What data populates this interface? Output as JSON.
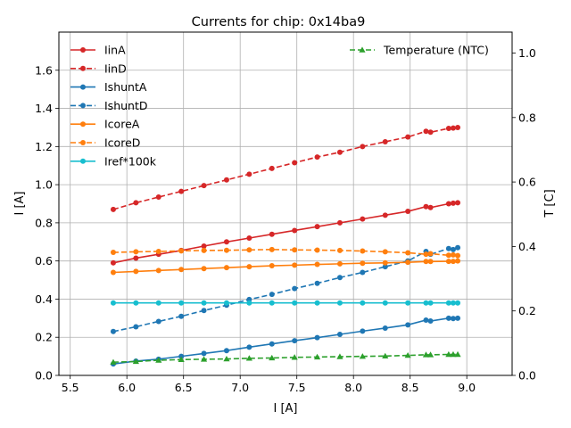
{
  "chart_data": {
    "type": "line",
    "title": "Currents for chip: 0x14ba9",
    "xlabel": "I [A]",
    "ylabel": "I [A]",
    "y2label": "T [C]",
    "xlim": [
      5.4,
      9.4
    ],
    "ylim": [
      0,
      1.8
    ],
    "y2lim": [
      0,
      1.065
    ],
    "xticks": [
      "5.5",
      "6.0",
      "6.5",
      "7.0",
      "7.5",
      "8.0",
      "8.5",
      "9.0"
    ],
    "yticks": [
      "0.0",
      "0.2",
      "0.4",
      "0.6",
      "0.8",
      "1.0",
      "1.2",
      "1.4",
      "1.6"
    ],
    "y2ticks": [
      "0.0",
      "0.2",
      "0.4",
      "0.6",
      "0.8",
      "1.0"
    ],
    "grid": true,
    "legend_left": "upper-left",
    "legend_right": "upper-right",
    "x": [
      5.88,
      6.08,
      6.28,
      6.48,
      6.68,
      6.88,
      7.08,
      7.28,
      7.48,
      7.68,
      7.88,
      8.08,
      8.28,
      8.48,
      8.64,
      8.68,
      8.84,
      8.88,
      8.92
    ],
    "series": [
      {
        "name": "IinA",
        "axis": "left",
        "color": "#d62728",
        "dash": false,
        "marker": "circle",
        "values": [
          0.59,
          0.615,
          0.635,
          0.655,
          0.678,
          0.7,
          0.72,
          0.74,
          0.76,
          0.78,
          0.8,
          0.82,
          0.84,
          0.86,
          0.885,
          0.88,
          0.9,
          0.903,
          0.905
        ]
      },
      {
        "name": "IinD",
        "axis": "left",
        "color": "#d62728",
        "dash": true,
        "marker": "circle",
        "values": [
          0.87,
          0.905,
          0.935,
          0.965,
          0.995,
          1.025,
          1.055,
          1.085,
          1.115,
          1.145,
          1.17,
          1.2,
          1.225,
          1.25,
          1.28,
          1.275,
          1.295,
          1.297,
          1.3
        ]
      },
      {
        "name": "IshuntA",
        "axis": "left",
        "color": "#1f77b4",
        "dash": false,
        "marker": "circle",
        "values": [
          0.06,
          0.075,
          0.085,
          0.1,
          0.115,
          0.13,
          0.148,
          0.165,
          0.182,
          0.198,
          0.215,
          0.232,
          0.248,
          0.265,
          0.29,
          0.285,
          0.3,
          0.298,
          0.3
        ]
      },
      {
        "name": "IshuntD",
        "axis": "left",
        "color": "#1f77b4",
        "dash": true,
        "marker": "circle",
        "values": [
          0.23,
          0.255,
          0.283,
          0.31,
          0.34,
          0.368,
          0.398,
          0.425,
          0.455,
          0.483,
          0.513,
          0.54,
          0.57,
          0.6,
          0.65,
          0.635,
          0.665,
          0.66,
          0.67
        ]
      },
      {
        "name": "IcoreA",
        "axis": "left",
        "color": "#ff7f0e",
        "dash": false,
        "marker": "circle",
        "values": [
          0.54,
          0.545,
          0.55,
          0.555,
          0.56,
          0.565,
          0.57,
          0.575,
          0.578,
          0.582,
          0.585,
          0.588,
          0.59,
          0.593,
          0.597,
          0.597,
          0.598,
          0.598,
          0.6
        ]
      },
      {
        "name": "IcoreD",
        "axis": "left",
        "color": "#ff7f0e",
        "dash": true,
        "marker": "circle",
        "values": [
          0.645,
          0.648,
          0.65,
          0.653,
          0.655,
          0.656,
          0.658,
          0.66,
          0.658,
          0.657,
          0.655,
          0.652,
          0.648,
          0.643,
          0.635,
          0.638,
          0.63,
          0.632,
          0.628
        ]
      },
      {
        "name": "Iref*100k",
        "axis": "left",
        "color": "#17becf",
        "dash": false,
        "marker": "circle",
        "values": [
          0.38,
          0.38,
          0.38,
          0.38,
          0.38,
          0.38,
          0.38,
          0.38,
          0.38,
          0.38,
          0.38,
          0.38,
          0.38,
          0.38,
          0.38,
          0.38,
          0.38,
          0.38,
          0.38
        ]
      },
      {
        "name": "Temperature (NTC)",
        "axis": "right",
        "color": "#2ca02c",
        "dash": true,
        "marker": "triangle",
        "values": [
          0.041,
          0.043,
          0.047,
          0.049,
          0.05,
          0.051,
          0.053,
          0.054,
          0.056,
          0.057,
          0.058,
          0.059,
          0.06,
          0.062,
          0.064,
          0.064,
          0.065,
          0.065,
          0.065
        ]
      }
    ]
  }
}
